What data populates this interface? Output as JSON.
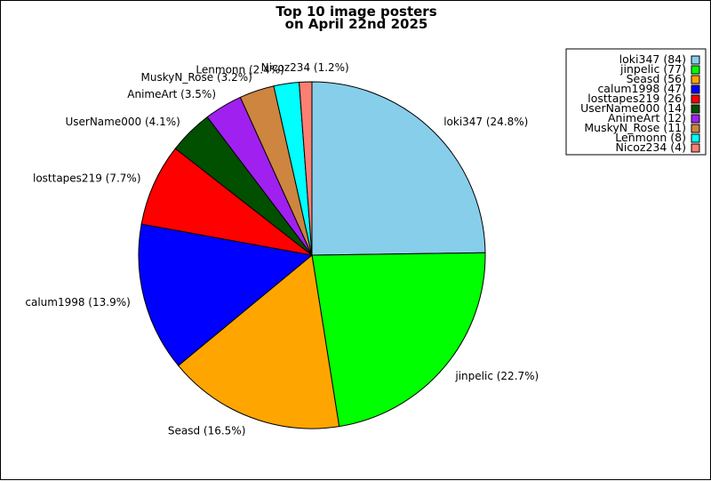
{
  "chart_data": {
    "type": "pie",
    "title": [
      "Top 10 image posters",
      "on April 22nd 2025"
    ],
    "legend_position": "top-right",
    "slices": [
      {
        "name": "loki347",
        "value": 84,
        "percent_label": "24.8%",
        "legend_label": "loki347 (84)",
        "color": "#87CEEB"
      },
      {
        "name": "jinpelic",
        "value": 77,
        "percent_label": "22.7%",
        "legend_label": "jinpelic (77)",
        "color": "#00FF00"
      },
      {
        "name": "Seasd",
        "value": 56,
        "percent_label": "16.5%",
        "legend_label": "Seasd (56)",
        "color": "#FFA500"
      },
      {
        "name": "calum1998",
        "value": 47,
        "percent_label": "13.9%",
        "legend_label": "calum1998 (47)",
        "color": "#0000FF"
      },
      {
        "name": "losttapes219",
        "value": 26,
        "percent_label": "7.7%",
        "legend_label": "losttapes219 (26)",
        "color": "#FF0000"
      },
      {
        "name": "UserName000",
        "value": 14,
        "percent_label": "4.1%",
        "legend_label": "UserName000 (14)",
        "color": "#005000"
      },
      {
        "name": "AnimeArt",
        "value": 12,
        "percent_label": "3.5%",
        "legend_label": "AnimeArt (12)",
        "color": "#A020F0"
      },
      {
        "name": "MuskyN_Rose",
        "value": 11,
        "percent_label": "3.2%",
        "legend_label": "MuskyN_Rose (11)",
        "color": "#CD853F"
      },
      {
        "name": "Lenmonn",
        "value": 8,
        "percent_label": "2.4%",
        "legend_label": "Lenmonn (8)",
        "color": "#00FFFF"
      },
      {
        "name": "Nicoz234",
        "value": 4,
        "percent_label": "1.2%",
        "legend_label": "Nicoz234 (4)",
        "color": "#FA8072"
      }
    ]
  }
}
